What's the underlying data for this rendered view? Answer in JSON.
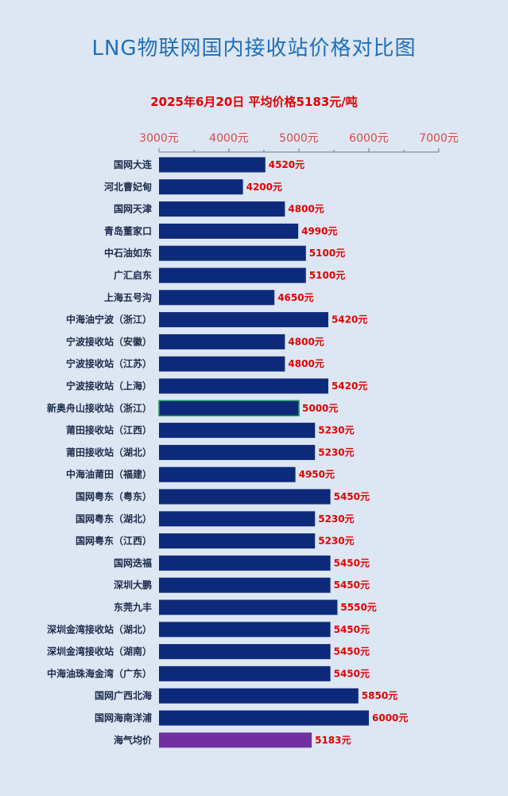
{
  "chart_data": {
    "type": "bar",
    "orientation": "horizontal",
    "title": "LNG物联网国内接收站价格对比图",
    "subtitle": "2025年6月20日 平均价格5183元/吨",
    "x_ticks": [
      "3000元",
      "4000元",
      "5000元",
      "6000元",
      "7000元"
    ],
    "x_tick_values": [
      3000,
      4000,
      5000,
      6000,
      7000
    ],
    "xlim": [
      3000,
      7000
    ],
    "value_suffix": "元",
    "grid": false,
    "colors": {
      "default": "#0d2a7a",
      "highlight": "#7030a0",
      "outlined_border": "#1f9a5a"
    },
    "categories": [
      "国网大连",
      "河北曹妃甸",
      "国网天津",
      "青岛董家口",
      "中石油如东",
      "广汇启东",
      "上海五号沟",
      "中海油宁波（浙江）",
      "宁波接收站（安徽）",
      "宁波接收站（江苏）",
      "宁波接收站（上海）",
      "新奥舟山接收站（浙江）",
      "莆田接收站（江西）",
      "莆田接收站（湖北）",
      "中海油莆田（福建）",
      "国网粤东（粤东）",
      "国网粤东（湖北）",
      "国网粤东（江西）",
      "国网迭福",
      "深圳大鹏",
      "东莞九丰",
      "深圳金湾接收站（湖北）",
      "深圳金湾接收站（湖南）",
      "中海油珠海金湾（广东）",
      "国网广西北海",
      "国网海南洋浦",
      "海气均价"
    ],
    "values": [
      4520,
      4200,
      4800,
      4990,
      5100,
      5100,
      4650,
      5420,
      4800,
      4800,
      5420,
      5000,
      5230,
      5230,
      4950,
      5450,
      5230,
      5230,
      5450,
      5450,
      5550,
      5450,
      5450,
      5450,
      5850,
      6000,
      5183
    ],
    "highlight_index": 26,
    "outlined_index": 11
  }
}
